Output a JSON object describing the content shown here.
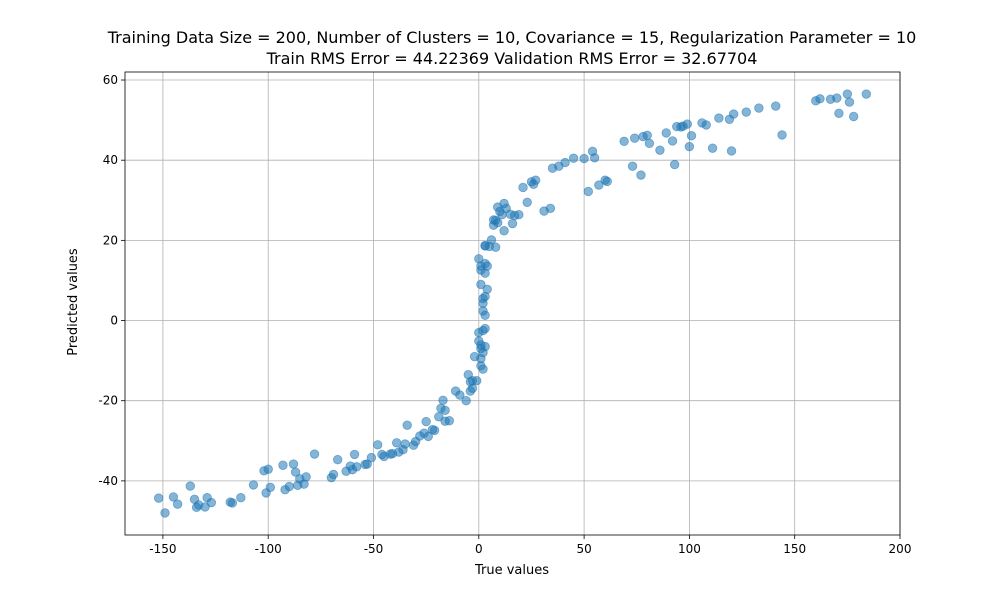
{
  "chart_data": {
    "type": "scatter",
    "title": "Training Data Size = 200, Number of Clusters = 10, Covariance = 15, Regularization Parameter = 10",
    "subtitle": "Train RMS Error = 44.22369 Validation RMS Error = 32.67704",
    "xlabel": "True values",
    "ylabel": "Predicted values",
    "xlim": [
      -168,
      200
    ],
    "ylim": [
      -53.5,
      62
    ],
    "xticks": [
      -150,
      -100,
      -50,
      0,
      50,
      100,
      150,
      200
    ],
    "yticks": [
      -40,
      -20,
      0,
      20,
      40,
      60
    ],
    "grid": true,
    "colors": {
      "marker": "#1f77b4",
      "grid": "#b0b0b0",
      "axis": "#000000"
    },
    "marker_alpha": 0.55,
    "points": [
      [
        -152,
        -44.3
      ],
      [
        -149,
        -48
      ],
      [
        -145,
        -44
      ],
      [
        -143,
        -45.8
      ],
      [
        -137,
        -41.3
      ],
      [
        -135,
        -44.6
      ],
      [
        -134,
        -46.6
      ],
      [
        -133,
        -46
      ],
      [
        -130,
        -46.5
      ],
      [
        -129,
        -44.2
      ],
      [
        -127,
        -45.4
      ],
      [
        -118,
        -45.3
      ],
      [
        -117,
        -45.5
      ],
      [
        -113,
        -44.2
      ],
      [
        -107,
        -41
      ],
      [
        -102,
        -37.5
      ],
      [
        -101,
        -43
      ],
      [
        -100,
        -37.1
      ],
      [
        -99,
        -41.6
      ],
      [
        -93,
        -36.1
      ],
      [
        -92,
        -42.2
      ],
      [
        -90,
        -41.4
      ],
      [
        -88,
        -35.8
      ],
      [
        -87,
        -37.8
      ],
      [
        -86,
        -41.1
      ],
      [
        -85,
        -39.5
      ],
      [
        -83,
        -40.8
      ],
      [
        -82,
        -39
      ],
      [
        -78,
        -33.3
      ],
      [
        -70,
        -39.2
      ],
      [
        -69,
        -38.4
      ],
      [
        -67,
        -34.7
      ],
      [
        -63,
        -37.6
      ],
      [
        -61,
        -36.3
      ],
      [
        -60,
        -37.2
      ],
      [
        -59,
        -33.4
      ],
      [
        -58,
        -36.5
      ],
      [
        -54,
        -35.9
      ],
      [
        -53,
        -35.8
      ],
      [
        -51,
        -34.2
      ],
      [
        -48,
        -31
      ],
      [
        -46,
        -33.4
      ],
      [
        -45,
        -33.9
      ],
      [
        -42,
        -33.3
      ],
      [
        -41,
        -33.2
      ],
      [
        -39,
        -30.5
      ],
      [
        -38,
        -32.8
      ],
      [
        -36,
        -32.2
      ],
      [
        -35,
        -30.8
      ],
      [
        -34,
        -26.1
      ],
      [
        -31,
        -31.1
      ],
      [
        -30,
        -30.2
      ],
      [
        -28,
        -28.8
      ],
      [
        -26,
        -28.1
      ],
      [
        -25,
        -25.2
      ],
      [
        -24,
        -28.9
      ],
      [
        -22,
        -27.2
      ],
      [
        -21,
        -27.4
      ],
      [
        -19,
        -24
      ],
      [
        -18,
        -21.9
      ],
      [
        -17,
        -19.9
      ],
      [
        -16,
        -25.1
      ],
      [
        -16,
        -22.4
      ],
      [
        -14,
        -25
      ],
      [
        -11,
        -17.6
      ],
      [
        -9,
        -18.6
      ],
      [
        -6,
        -20
      ],
      [
        -5,
        -13.5
      ],
      [
        -4,
        -15.3
      ],
      [
        -4,
        -17.6
      ],
      [
        -3,
        -15
      ],
      [
        -3,
        -16.9
      ],
      [
        -2,
        -9
      ],
      [
        -1,
        -15
      ],
      [
        0,
        -3
      ],
      [
        0,
        -5.1
      ],
      [
        0,
        15.4
      ],
      [
        1,
        -6.1
      ],
      [
        1,
        -11.3
      ],
      [
        1,
        9
      ],
      [
        1,
        13.6
      ],
      [
        1,
        12.6
      ],
      [
        1,
        -9.5
      ],
      [
        1,
        -7
      ],
      [
        2,
        -8
      ],
      [
        2,
        -2.5
      ],
      [
        2,
        4.3
      ],
      [
        2,
        2.4
      ],
      [
        2,
        5.5
      ],
      [
        2,
        -12.1
      ],
      [
        3,
        18.6
      ],
      [
        3,
        14.2
      ],
      [
        3,
        11.8
      ],
      [
        3,
        6
      ],
      [
        3,
        -2
      ],
      [
        3,
        -6.5
      ],
      [
        3,
        1.3
      ],
      [
        3,
        18.7
      ],
      [
        4,
        7.8
      ],
      [
        4,
        13.6
      ],
      [
        5,
        18.5
      ],
      [
        6,
        20.1
      ],
      [
        8,
        18.3
      ],
      [
        7,
        23.8
      ],
      [
        7,
        25.1
      ],
      [
        8,
        25
      ],
      [
        9,
        24.4
      ],
      [
        9,
        28.3
      ],
      [
        10,
        27.2
      ],
      [
        11,
        26.4
      ],
      [
        12,
        22.4
      ],
      [
        12,
        29.2
      ],
      [
        13,
        28
      ],
      [
        15,
        26.5
      ],
      [
        16,
        24.2
      ],
      [
        17,
        26.2
      ],
      [
        19,
        26.4
      ],
      [
        21,
        33.2
      ],
      [
        23,
        29.5
      ],
      [
        25,
        34.6
      ],
      [
        26,
        34
      ],
      [
        27,
        35
      ],
      [
        31,
        27.3
      ],
      [
        34,
        28
      ],
      [
        35,
        38
      ],
      [
        38,
        38.5
      ],
      [
        41,
        39.4
      ],
      [
        45,
        40.5
      ],
      [
        50,
        40.4
      ],
      [
        52,
        32.2
      ],
      [
        54,
        42.2
      ],
      [
        55,
        40.6
      ],
      [
        57,
        33.8
      ],
      [
        60,
        35
      ],
      [
        61,
        34.7
      ],
      [
        69,
        44.7
      ],
      [
        73,
        38.5
      ],
      [
        74,
        45.5
      ],
      [
        77,
        36.3
      ],
      [
        78,
        45.9
      ],
      [
        80,
        46.2
      ],
      [
        81,
        44.2
      ],
      [
        86,
        42.5
      ],
      [
        89,
        46.8
      ],
      [
        92,
        44.8
      ],
      [
        93,
        38.9
      ],
      [
        94,
        48.4
      ],
      [
        96,
        48.3
      ],
      [
        97,
        48.5
      ],
      [
        99,
        49
      ],
      [
        100,
        43.4
      ],
      [
        101,
        46.1
      ],
      [
        106,
        49.3
      ],
      [
        108,
        48.8
      ],
      [
        111,
        43
      ],
      [
        114,
        50.5
      ],
      [
        119,
        50.2
      ],
      [
        120,
        42.3
      ],
      [
        121,
        51.5
      ],
      [
        127,
        52
      ],
      [
        133,
        53
      ],
      [
        141,
        53.5
      ],
      [
        144,
        46.3
      ],
      [
        160,
        54.8
      ],
      [
        162,
        55.3
      ],
      [
        167,
        55.2
      ],
      [
        170,
        55.5
      ],
      [
        171,
        51.7
      ],
      [
        175,
        56.5
      ],
      [
        176,
        54.5
      ],
      [
        178,
        50.9
      ],
      [
        184,
        56.5
      ]
    ]
  }
}
